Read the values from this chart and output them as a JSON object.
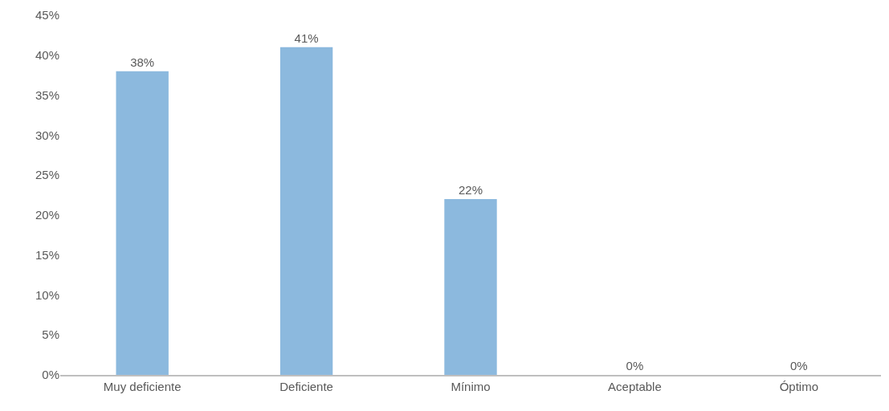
{
  "chart_data": {
    "type": "bar",
    "categories": [
      "Muy deficiente",
      "Deficiente",
      "Mínimo",
      "Aceptable",
      "Óptimo"
    ],
    "values": [
      38,
      41,
      22,
      0,
      0
    ],
    "value_labels": [
      "38%",
      "41%",
      "22%",
      "0%",
      "0%"
    ],
    "color": "#8cb9de",
    "ylim": [
      0,
      45
    ],
    "yticks": [
      {
        "value": 0,
        "label": "0%"
      },
      {
        "value": 5,
        "label": "5%"
      },
      {
        "value": 10,
        "label": "10%"
      },
      {
        "value": 15,
        "label": "15%"
      },
      {
        "value": 20,
        "label": "20%"
      },
      {
        "value": 25,
        "label": "25%"
      },
      {
        "value": 30,
        "label": "30%"
      },
      {
        "value": 35,
        "label": "35%"
      },
      {
        "value": 40,
        "label": "40%"
      },
      {
        "value": 45,
        "label": "45%"
      }
    ],
    "legend": false
  }
}
